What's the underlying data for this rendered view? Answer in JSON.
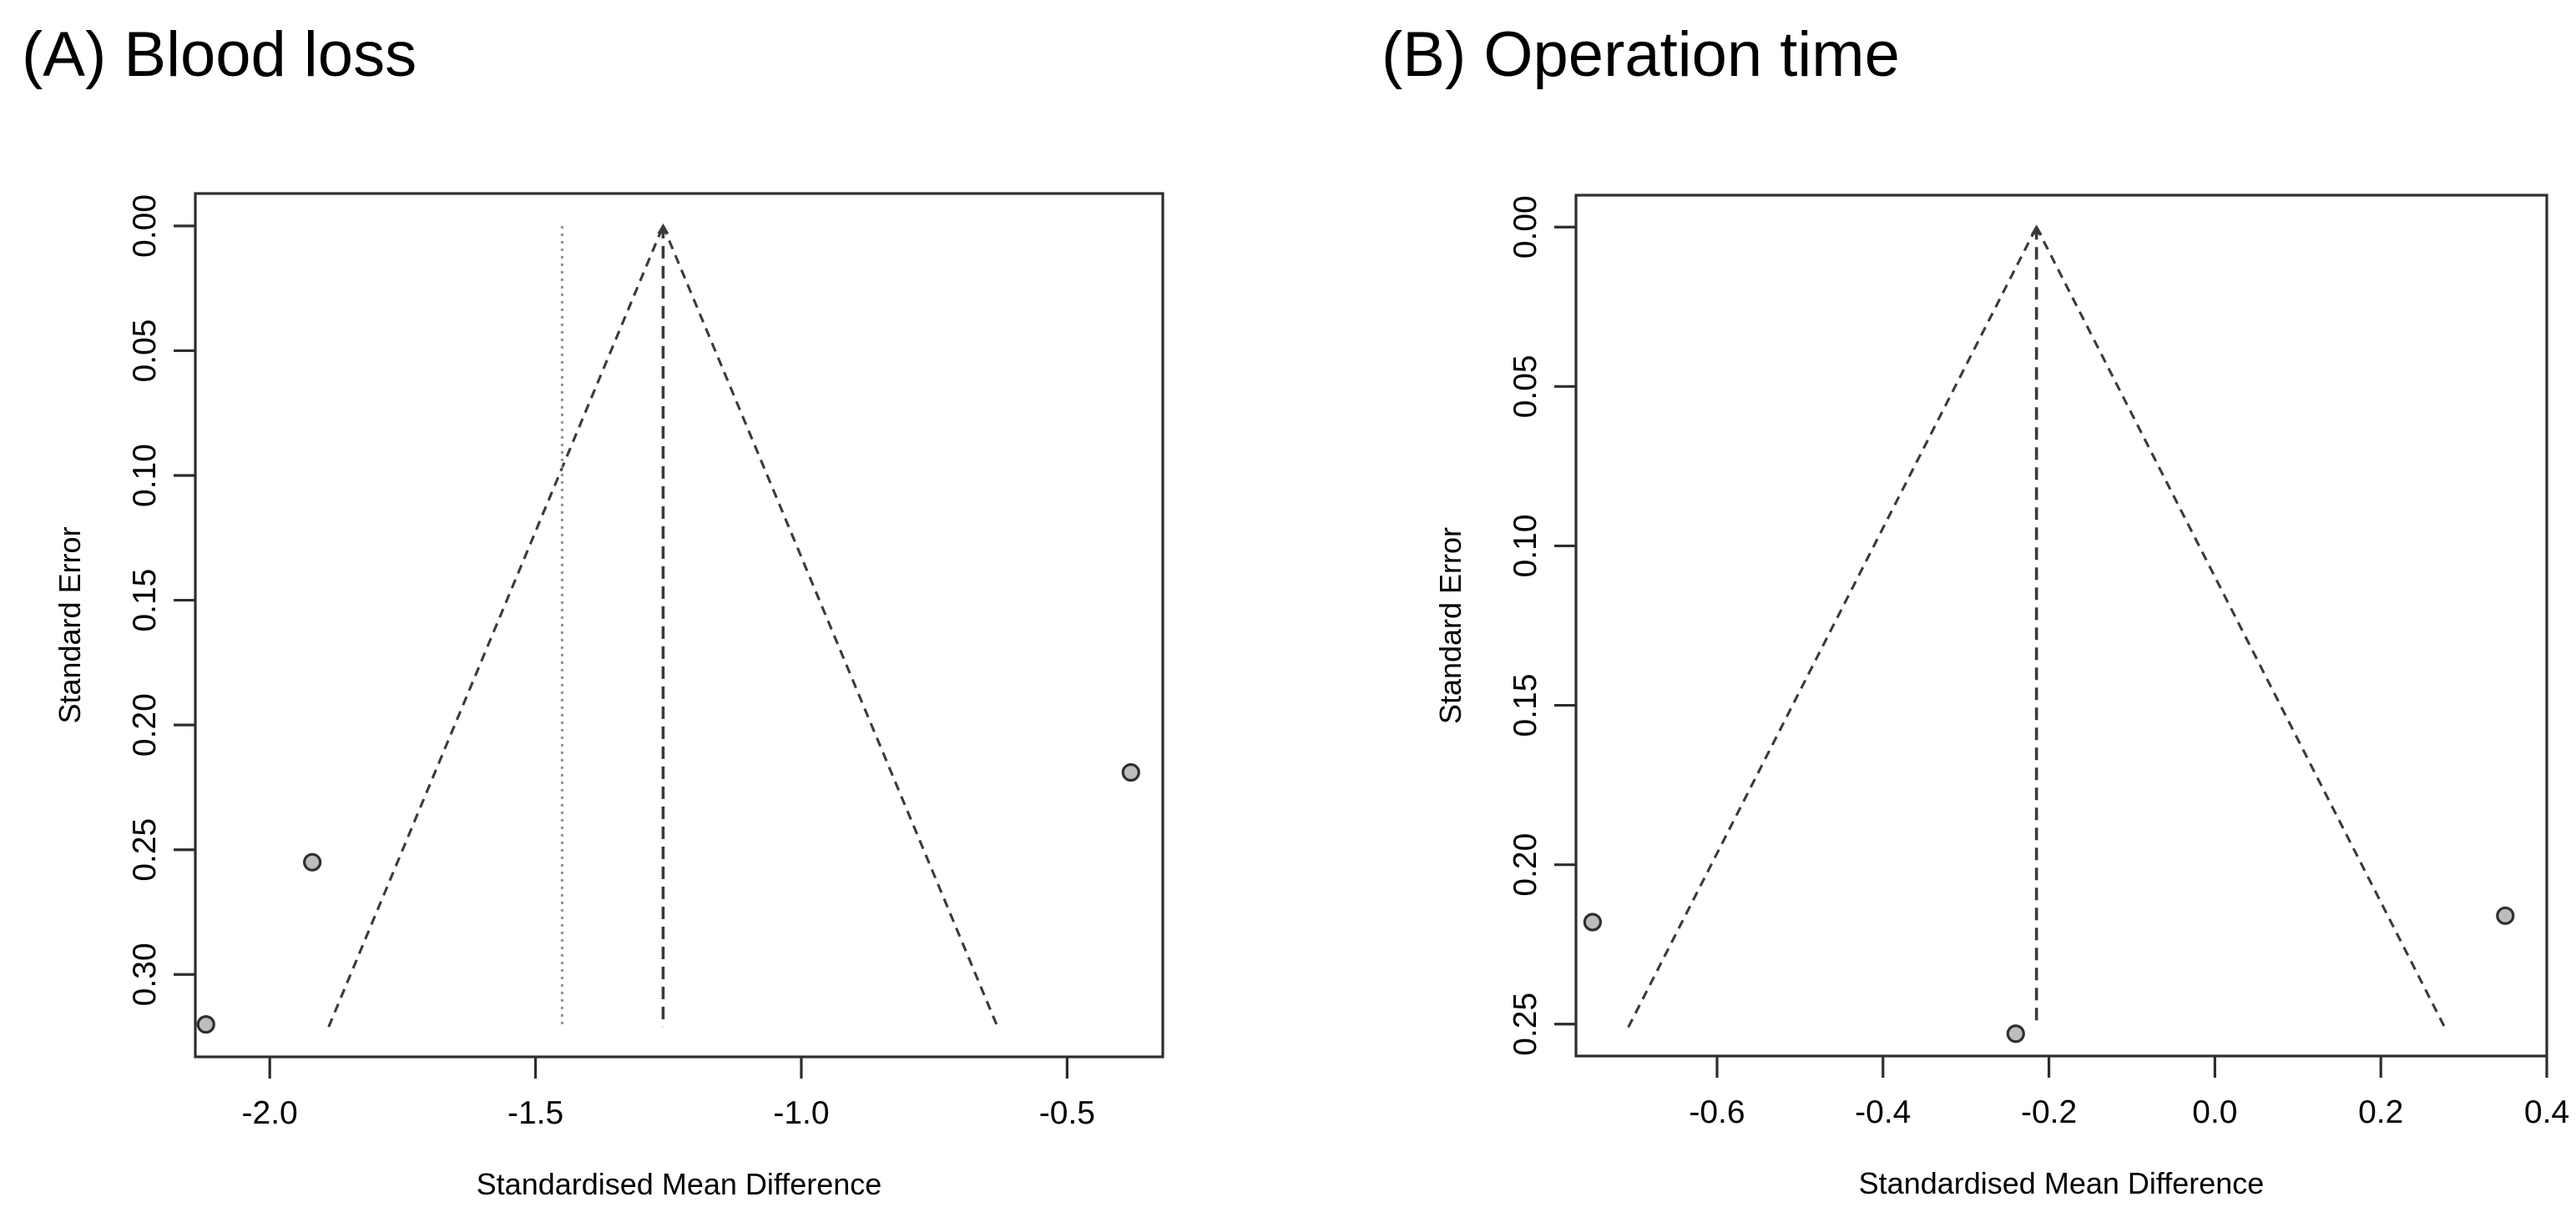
{
  "figure": {
    "background": "#ffffff",
    "text_color": "#000000",
    "axis_color": "#2d2d2d",
    "funnel_line_color": "#3a3a3a",
    "dotted_line_color": "#8f8f8f",
    "point_fill": "#bdbdbd",
    "point_stroke": "#2f2f2f"
  },
  "chart_data": [
    {
      "type": "scatter",
      "subtype": "funnel-plot",
      "panel_label": "(A) Blood loss",
      "xlabel": "Standardised Mean Difference",
      "ylabel": "Standard Error",
      "xlim": [
        -2.14,
        -0.32
      ],
      "ylim": [
        -0.013,
        0.333
      ],
      "y_axis_reversed": true,
      "grid": false,
      "legend": "none",
      "x_ticks": [
        -2.0,
        -1.5,
        -1.0,
        -0.5
      ],
      "x_tick_labels": [
        "-2.0",
        "-1.5",
        "-1.0",
        "-0.5"
      ],
      "y_ticks": [
        0.0,
        0.05,
        0.1,
        0.15,
        0.2,
        0.25,
        0.3
      ],
      "y_tick_labels": [
        "0.00",
        "0.05",
        "0.10",
        "0.15",
        "0.20",
        "0.25",
        "0.30"
      ],
      "funnel": {
        "center": -1.26,
        "z": 1.96,
        "se_max": 0.321,
        "style": "dashed"
      },
      "center_line": {
        "x": -1.26,
        "style": "dashed"
      },
      "reference_lines": [
        {
          "x": -1.45,
          "style": "dotted"
        }
      ],
      "points": [
        {
          "x": -2.12,
          "se": 0.32
        },
        {
          "x": -1.92,
          "se": 0.255
        },
        {
          "x": -0.38,
          "se": 0.219
        }
      ]
    },
    {
      "type": "scatter",
      "subtype": "funnel-plot",
      "panel_label": "(B) Operation time",
      "xlabel": "Standardised Mean Difference",
      "ylabel": "Standard Error",
      "xlim": [
        -0.77,
        0.4
      ],
      "ylim": [
        -0.01,
        0.26
      ],
      "y_axis_reversed": true,
      "grid": false,
      "legend": "none",
      "x_ticks": [
        -0.6,
        -0.4,
        -0.2,
        0.0,
        0.2,
        0.4
      ],
      "x_tick_labels": [
        "-0.6",
        "-0.4",
        "-0.2",
        "0.0",
        "0.2",
        "0.4"
      ],
      "y_ticks": [
        0.0,
        0.05,
        0.1,
        0.15,
        0.2,
        0.25
      ],
      "y_tick_labels": [
        "0.00",
        "0.05",
        "0.10",
        "0.15",
        "0.20",
        "0.25"
      ],
      "funnel": {
        "center": -0.215,
        "z": 1.96,
        "se_max": 0.251,
        "style": "dashed"
      },
      "center_line": {
        "x": -0.215,
        "style": "dashed"
      },
      "reference_lines": [],
      "points": [
        {
          "x": -0.75,
          "se": 0.218
        },
        {
          "x": -0.24,
          "se": 0.253
        },
        {
          "x": 0.35,
          "se": 0.216
        }
      ]
    }
  ]
}
